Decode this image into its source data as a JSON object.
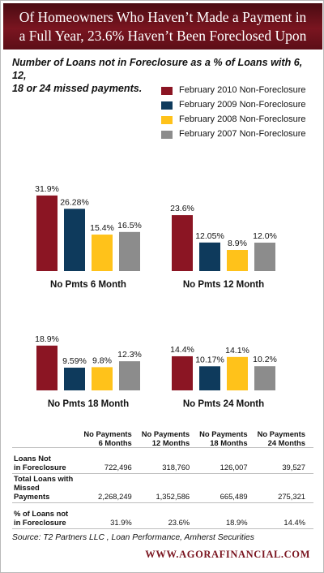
{
  "header": {
    "line1": "Of Homeowners Who Haven’t Made a Payment in",
    "line2": "a Full Year, 23.6% Haven’t Been Foreclosed Upon"
  },
  "subtitle": {
    "line1": "Number of Loans not in Foreclosure as a % of Loans with 6, 12,",
    "line2": "18 or 24 missed payments."
  },
  "legend": [
    {
      "label": "February 2010 Non-Foreclosure",
      "color": "#8b1523"
    },
    {
      "label": "February 2009 Non-Foreclosure",
      "color": "#0e3a5c"
    },
    {
      "label": "February 2008 Non-Foreclosure",
      "color": "#ffc21a"
    },
    {
      "label": "February 2007 Non-Foreclosure",
      "color": "#8c8c8c"
    }
  ],
  "chart_data": [
    {
      "type": "bar",
      "title": "No Pmts 6 Month",
      "categories": [
        "February 2010",
        "February 2009",
        "February 2008",
        "February 2007"
      ],
      "values": [
        31.9,
        26.28,
        15.4,
        16.5
      ],
      "labels": [
        "31.9%",
        "26.28%",
        "15.4%",
        "16.5%"
      ]
    },
    {
      "type": "bar",
      "title": "No Pmts 12 Month",
      "categories": [
        "February 2010",
        "February 2009",
        "February 2008",
        "February 2007"
      ],
      "values": [
        23.6,
        12.05,
        8.9,
        12.0
      ],
      "labels": [
        "23.6%",
        "12.05%",
        "8.9%",
        "12.0%"
      ]
    },
    {
      "type": "bar",
      "title": "No Pmts 18 Month",
      "categories": [
        "February 2010",
        "February 2009",
        "February 2008",
        "February 2007"
      ],
      "values": [
        18.9,
        9.59,
        9.8,
        12.3
      ],
      "labels": [
        "18.9%",
        "9.59%",
        "9.8%",
        "12.3%"
      ]
    },
    {
      "type": "bar",
      "title": "No Pmts 24 Month",
      "categories": [
        "February 2010",
        "February 2009",
        "February 2008",
        "February 2007"
      ],
      "values": [
        14.4,
        10.17,
        14.1,
        10.2
      ],
      "labels": [
        "14.4%",
        "10.17%",
        "14.1%",
        "10.2%"
      ]
    }
  ],
  "table": {
    "headers": [
      {
        "line1": "No Payments",
        "line2": "6 Months"
      },
      {
        "line1": "No Payments",
        "line2": "12 Months"
      },
      {
        "line1": "No Payments",
        "line2": "18 Months"
      },
      {
        "line1": "No Payments",
        "line2": "24 Months"
      }
    ],
    "rows": [
      {
        "line1": "Loans Not",
        "line2": "in Foreclosure",
        "values": [
          "722,496",
          "318,760",
          "126,007",
          "39,527"
        ]
      },
      {
        "line1": "Total Loans with",
        "line2": "Missed Payments",
        "values": [
          "2,268,249",
          "1,352,586",
          "665,489",
          "275,321"
        ]
      },
      {
        "line1": "% of Loans not",
        "line2": "in Foreclosure",
        "values": [
          "31.9%",
          "23.6%",
          "18.9%",
          "14.4%"
        ]
      }
    ]
  },
  "source": "Source: T2 Partners LLC , Loan Performance, Amherst Securities",
  "brand": "WWW.AGORAFINANCIAL.COM"
}
